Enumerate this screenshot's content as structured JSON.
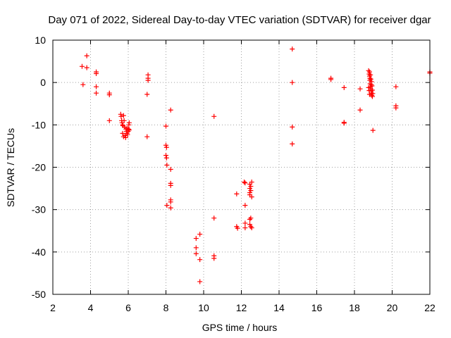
{
  "chart_data": {
    "type": "scatter",
    "title": "Day 071 of 2022, Sidereal Day-to-day VTEC variation (SDTVAR) for receiver dgar",
    "xlabel": "GPS time / hours",
    "ylabel": "SDTVAR / TECUs",
    "xlim": [
      2,
      22
    ],
    "ylim": [
      -50,
      10
    ],
    "xticks": [
      2,
      4,
      6,
      8,
      10,
      12,
      14,
      16,
      18,
      20,
      22
    ],
    "yticks": [
      -50,
      -40,
      -30,
      -20,
      -10,
      0,
      10
    ],
    "xtick_labels": [
      "2",
      "4",
      "6",
      "8",
      "10",
      "12",
      "14",
      "16",
      "18",
      "20",
      "22"
    ],
    "ytick_labels": [
      "-50",
      "-40",
      "-30",
      "-20",
      "-10",
      "0",
      "10"
    ],
    "grid": true,
    "marker": "+",
    "color": "#ff0000",
    "series": [
      {
        "name": "dgar",
        "points": [
          [
            3.55,
            3.8
          ],
          [
            3.6,
            -0.5
          ],
          [
            3.8,
            6.3
          ],
          [
            3.8,
            3.5
          ],
          [
            4.3,
            2.5
          ],
          [
            4.3,
            2.1
          ],
          [
            4.3,
            -1.0
          ],
          [
            4.3,
            -2.5
          ],
          [
            5.0,
            -2.5
          ],
          [
            5.0,
            -2.9
          ],
          [
            5.0,
            -9.0
          ],
          [
            5.6,
            -7.5
          ],
          [
            5.62,
            -8.0
          ],
          [
            5.65,
            -9.0
          ],
          [
            5.67,
            -9.5
          ],
          [
            5.7,
            -10.0
          ],
          [
            5.72,
            -10.2
          ],
          [
            5.75,
            -7.8
          ],
          [
            5.78,
            -9.0
          ],
          [
            5.8,
            -10.5
          ],
          [
            5.83,
            -12.5
          ],
          [
            5.86,
            -13.0
          ],
          [
            5.9,
            -11.5
          ],
          [
            5.93,
            -12.0
          ],
          [
            5.96,
            -12.3
          ],
          [
            6.0,
            -11.5
          ],
          [
            6.02,
            -11.0
          ],
          [
            6.03,
            -10.0
          ],
          [
            6.05,
            -9.5
          ],
          [
            6.05,
            -11.2
          ],
          [
            5.75,
            -12.8
          ],
          [
            5.7,
            -12.0
          ],
          [
            5.88,
            -11.0
          ],
          [
            5.95,
            -10.8
          ],
          [
            7.05,
            1.8
          ],
          [
            7.05,
            1.0
          ],
          [
            7.05,
            0.5
          ],
          [
            7.0,
            -2.8
          ],
          [
            7.0,
            -12.8
          ],
          [
            8.0,
            -10.3
          ],
          [
            8.0,
            -14.8
          ],
          [
            8.03,
            -15.3
          ],
          [
            8.0,
            -17.2
          ],
          [
            8.03,
            -17.8
          ],
          [
            8.05,
            -19.5
          ],
          [
            8.05,
            -29.0
          ],
          [
            8.25,
            -6.5
          ],
          [
            8.25,
            -20.5
          ],
          [
            8.25,
            -23.8
          ],
          [
            8.25,
            -24.3
          ],
          [
            8.25,
            -27.7
          ],
          [
            8.25,
            -28.2
          ],
          [
            8.25,
            -29.6
          ],
          [
            9.6,
            -36.8
          ],
          [
            9.6,
            -39.0
          ],
          [
            9.6,
            -40.4
          ],
          [
            9.8,
            -35.8
          ],
          [
            9.8,
            -41.8
          ],
          [
            9.8,
            -47.0
          ],
          [
            10.55,
            -8.0
          ],
          [
            10.55,
            -32.0
          ],
          [
            10.55,
            -40.9
          ],
          [
            10.55,
            -41.5
          ],
          [
            11.75,
            -26.3
          ],
          [
            11.75,
            -34.0
          ],
          [
            11.8,
            -34.4
          ],
          [
            12.15,
            -23.5
          ],
          [
            12.2,
            -23.7
          ],
          [
            12.2,
            -29.0
          ],
          [
            12.2,
            -33.2
          ],
          [
            12.2,
            -34.3
          ],
          [
            12.45,
            -24.0
          ],
          [
            12.45,
            -25.0
          ],
          [
            12.45,
            -26.0
          ],
          [
            12.45,
            -26.5
          ],
          [
            12.5,
            -24.5
          ],
          [
            12.5,
            -25.5
          ],
          [
            12.55,
            -23.5
          ],
          [
            12.55,
            -27.0
          ],
          [
            12.45,
            -32.3
          ],
          [
            12.5,
            -32.0
          ],
          [
            12.45,
            -33.5
          ],
          [
            12.5,
            -34.0
          ],
          [
            12.55,
            -34.3
          ],
          [
            14.7,
            7.9
          ],
          [
            14.7,
            0.0
          ],
          [
            14.7,
            -10.5
          ],
          [
            14.7,
            -14.5
          ],
          [
            16.75,
            1.0
          ],
          [
            16.75,
            0.7
          ],
          [
            17.45,
            -1.2
          ],
          [
            17.45,
            -9.4
          ],
          [
            17.45,
            -9.6
          ],
          [
            18.3,
            -1.5
          ],
          [
            18.3,
            -6.5
          ],
          [
            18.75,
            2.8
          ],
          [
            18.78,
            2.0
          ],
          [
            18.8,
            1.5
          ],
          [
            18.82,
            0.5
          ],
          [
            18.83,
            -0.3
          ],
          [
            18.85,
            -1.0
          ],
          [
            18.87,
            -1.5
          ],
          [
            18.88,
            -2.0
          ],
          [
            18.9,
            -2.5
          ],
          [
            18.92,
            -3.0
          ],
          [
            18.8,
            2.5
          ],
          [
            18.85,
            1.8
          ],
          [
            18.9,
            0.2
          ],
          [
            18.93,
            -0.8
          ],
          [
            18.95,
            -1.8
          ],
          [
            18.97,
            -2.6
          ],
          [
            18.75,
            -1.2
          ],
          [
            18.78,
            -1.9
          ],
          [
            18.8,
            -2.8
          ],
          [
            18.82,
            1.0
          ],
          [
            18.87,
            0.8
          ],
          [
            18.9,
            -0.5
          ],
          [
            18.95,
            -3.3
          ],
          [
            18.98,
            -11.3
          ],
          [
            20.2,
            -1.0
          ],
          [
            20.2,
            -5.5
          ],
          [
            20.2,
            -6.0
          ],
          [
            22.0,
            2.5
          ],
          [
            22.0,
            2.2
          ]
        ]
      }
    ]
  }
}
